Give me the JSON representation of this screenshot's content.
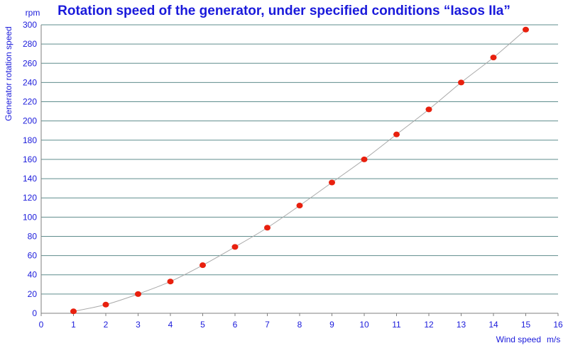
{
  "chart_data": {
    "type": "scatter",
    "title": "Rotation speed of the generator, under specified conditions “Iasos IIa”",
    "xlabel": "Wind speed",
    "xunit": "m/s",
    "ylabel": "Generator rotation speed",
    "yunit": "rpm",
    "xlim": [
      0,
      16
    ],
    "ylim": [
      0,
      300
    ],
    "xticks": [
      0,
      1,
      2,
      3,
      4,
      5,
      6,
      7,
      8,
      9,
      10,
      11,
      12,
      13,
      14,
      15,
      16
    ],
    "yticks": [
      0,
      20,
      40,
      60,
      80,
      100,
      120,
      140,
      160,
      180,
      200,
      220,
      240,
      260,
      280,
      300
    ],
    "grid": "horizontal",
    "trendline": "smooth",
    "series": [
      {
        "x": [
          1,
          2,
          3,
          4,
          5,
          6,
          7,
          8,
          9,
          10,
          11,
          12,
          13,
          14,
          15
        ],
        "y": [
          2,
          9,
          20,
          33,
          50,
          69,
          89,
          112,
          136,
          160,
          186,
          212,
          240,
          266,
          295
        ]
      }
    ],
    "colors": {
      "marker": "#e8200e",
      "trendline": "#a9a9a9",
      "grid": "#5f8d8d",
      "text": "#1a1adb",
      "plot_background": "#ffffff"
    }
  }
}
